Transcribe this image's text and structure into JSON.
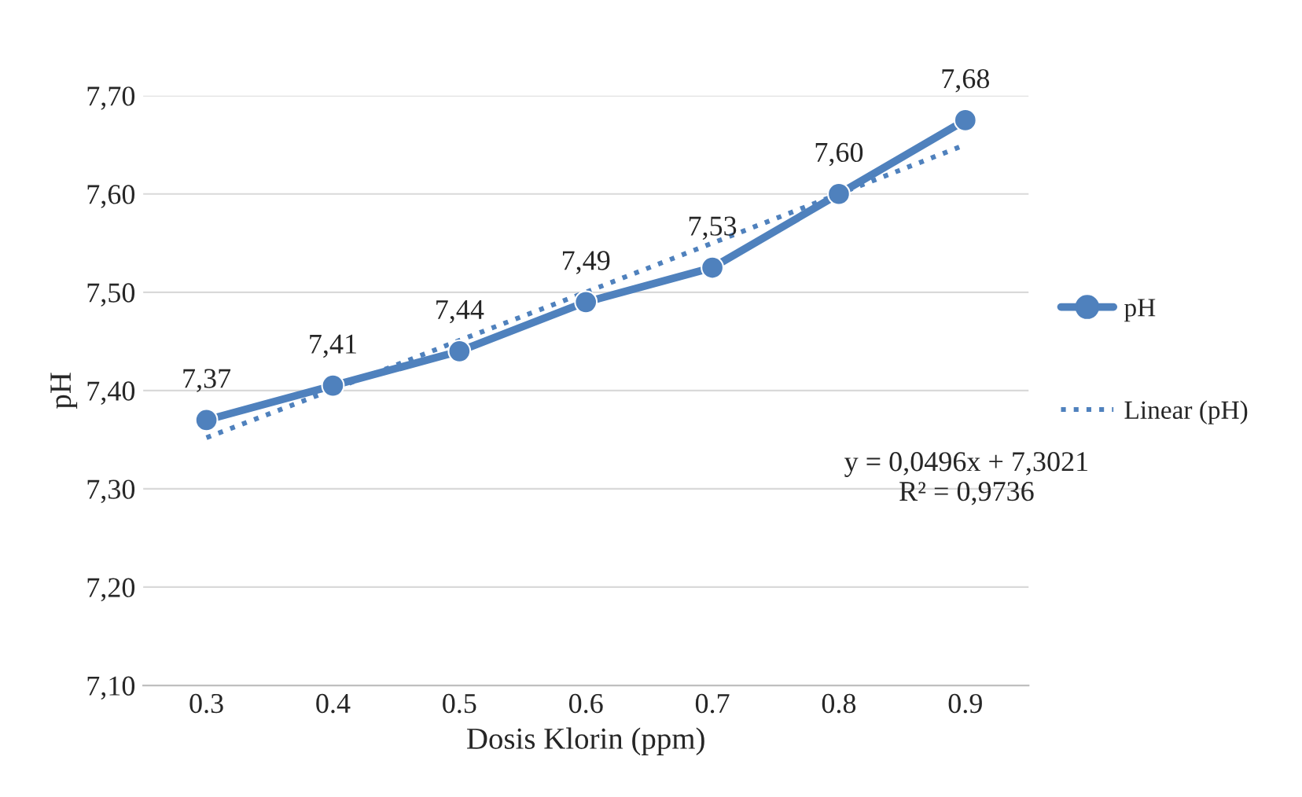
{
  "chart_data": {
    "type": "line",
    "xlabel": "Dosis Klorin (ppm)",
    "ylabel": "pH",
    "categories": [
      "0.3",
      "0.4",
      "0.5",
      "0.6",
      "0.7",
      "0.8",
      "0.9"
    ],
    "series": [
      {
        "name": "pH",
        "color": "#4f81bd",
        "values": [
          7.37,
          7.405,
          7.44,
          7.49,
          7.525,
          7.6,
          7.675
        ],
        "marker": "circle",
        "line_style": "solid",
        "value_labels": [
          "7,37",
          "7,41",
          "7,44",
          "7,49",
          "7,53",
          "7,60",
          "7,68"
        ]
      },
      {
        "name": "Linear (pH)",
        "color": "#4f81bd",
        "values": [
          7.352,
          7.401,
          7.451,
          7.5,
          7.55,
          7.6,
          7.65
        ],
        "marker": "none",
        "line_style": "dotted"
      }
    ],
    "ylim": [
      7.1,
      7.7
    ],
    "yticks": [
      {
        "value": 7.1,
        "label": "7,10"
      },
      {
        "value": 7.2,
        "label": "7,20"
      },
      {
        "value": 7.3,
        "label": "7,30"
      },
      {
        "value": 7.4,
        "label": "7,40"
      },
      {
        "value": 7.5,
        "label": "7,50"
      },
      {
        "value": 7.6,
        "label": "7,60"
      },
      {
        "value": 7.7,
        "label": "7,70"
      }
    ],
    "grid": "y",
    "legend": "right",
    "annotations": [
      "y = 0,0496x + 7,3021\nR² = 0,9736"
    ]
  }
}
